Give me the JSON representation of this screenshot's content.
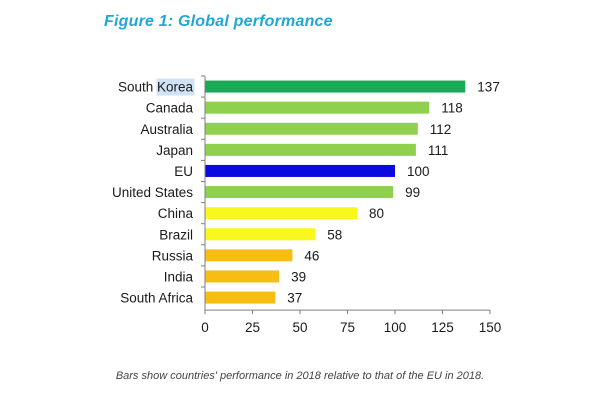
{
  "figure": {
    "title": "Figure 1: Global performance",
    "caption": "Bars show countries' performance in 2018 relative to that of the EU in 2018."
  },
  "chart_data": {
    "type": "bar",
    "orientation": "horizontal",
    "title": "Figure 1: Global performance",
    "xlabel": "",
    "ylabel": "",
    "xlim": [
      0,
      150
    ],
    "x_ticks": [
      0,
      25,
      50,
      75,
      100,
      125,
      150
    ],
    "grid": false,
    "highlighted_category": "South Korea",
    "categories": [
      "South Korea",
      "Canada",
      "Australia",
      "Japan",
      "EU",
      "United States",
      "China",
      "Brazil",
      "Russia",
      "India",
      "South Africa"
    ],
    "values": [
      137,
      118,
      112,
      111,
      100,
      99,
      80,
      58,
      46,
      39,
      37
    ],
    "colors": [
      "#1aaa55",
      "#8fd14f",
      "#8fd14f",
      "#8fd14f",
      "#0a0ae0",
      "#8fd14f",
      "#f8f81c",
      "#f8f81c",
      "#f7bd13",
      "#f7bd13",
      "#f7bd13"
    ],
    "highlight_color": "#cfe3f5",
    "axis_color": "#7f7f7f",
    "text_color": "#1a1a1a"
  }
}
